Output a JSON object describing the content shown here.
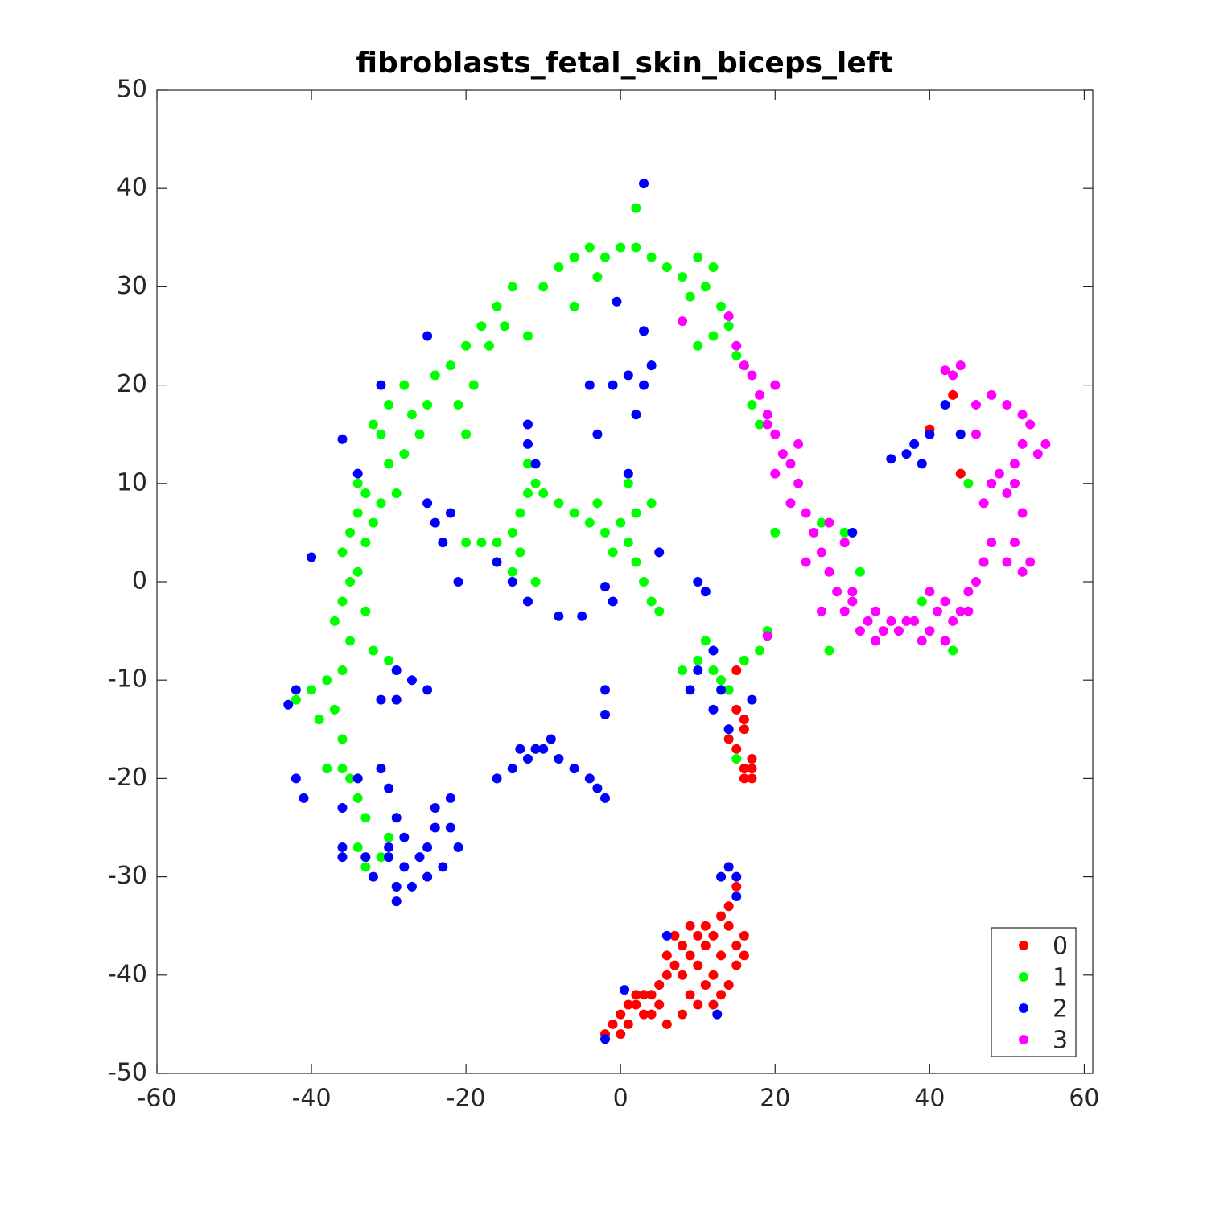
{
  "chart_data": {
    "type": "scatter",
    "title": "fibroblasts_fetal_skin_biceps_left",
    "xlim": [
      -60,
      61.1
    ],
    "ylim": [
      -50,
      50
    ],
    "xticks": [
      -60,
      -40,
      -20,
      0,
      20,
      40,
      60
    ],
    "yticks": [
      -50,
      -40,
      -30,
      -20,
      -10,
      0,
      10,
      20,
      30,
      40,
      50
    ],
    "legend": "lower right",
    "series": [
      {
        "name": "0",
        "color": "#ff0000",
        "x": [
          -2,
          -1,
          0,
          1,
          2,
          3,
          1,
          2,
          4,
          5,
          6,
          4,
          5,
          6,
          7,
          6,
          8,
          8,
          9,
          10,
          11,
          9,
          10,
          11,
          12,
          13,
          12,
          14,
          15,
          16,
          15,
          14,
          13,
          16,
          13,
          14,
          15,
          11,
          10,
          12,
          8,
          7,
          9,
          3,
          0,
          14,
          15,
          16,
          15,
          16,
          17,
          16,
          17,
          14,
          15,
          16,
          17,
          43,
          40,
          44
        ],
        "values": [
          -46,
          -45,
          -44,
          -45,
          -43,
          -44,
          -43,
          -42,
          -44,
          -43,
          -45,
          -42,
          -41,
          -40,
          -39,
          -38,
          -37,
          -40,
          -38,
          -36,
          -37,
          -42,
          -43,
          -41,
          -40,
          -38,
          -36,
          -35,
          -37,
          -36,
          -39,
          -41,
          -42,
          -38,
          -34,
          -33,
          -31,
          -35,
          -39,
          -43,
          -44,
          -36,
          -35,
          -42,
          -46,
          -11,
          -13,
          -15,
          -17,
          -19,
          -18,
          -20,
          -20,
          -16,
          -9,
          -14,
          -19,
          19,
          15.5,
          11
        ]
      },
      {
        "name": "1",
        "color": "#00ff00",
        "x": [
          -42,
          -40,
          -39,
          -38,
          -37,
          -36,
          -38,
          -36,
          -35,
          -34,
          -33,
          -34,
          -33,
          -31,
          -30,
          -36,
          -35,
          -37,
          -36,
          -35,
          -34,
          -36,
          -35,
          -33,
          -34,
          -33,
          -34,
          -32,
          -30,
          -33,
          -32,
          -31,
          -30,
          -31,
          -32,
          -30,
          -28,
          -27,
          -26,
          -25,
          -28,
          -29,
          -24,
          -22,
          -20,
          -18,
          -16,
          -14,
          -15,
          -17,
          -19,
          -21,
          -20,
          -12,
          -10,
          -8,
          -6,
          -4,
          -2,
          0,
          2,
          4,
          6,
          8,
          10,
          12,
          11,
          9,
          13,
          14,
          12,
          10,
          15,
          16,
          17,
          18,
          -6,
          -3,
          2,
          -20,
          -18,
          -16,
          -14,
          -13,
          -12,
          -11,
          -10,
          -8,
          -6,
          -4,
          -2,
          0,
          2,
          4,
          1,
          2,
          3,
          4,
          5,
          -14,
          -13,
          -11,
          -12,
          -3,
          1,
          -1,
          8,
          10,
          11,
          12,
          13,
          14,
          16,
          18,
          19,
          14,
          15,
          27,
          29,
          31,
          39,
          43,
          20,
          26,
          45
        ],
        "values": [
          -12,
          -11,
          -14,
          -10,
          -13,
          -16,
          -19,
          -19,
          -20,
          -22,
          -24,
          -27,
          -29,
          -28,
          -26,
          -9,
          -6,
          -4,
          -2,
          0,
          1,
          3,
          5,
          4,
          7,
          9,
          10,
          -7,
          -8,
          -3,
          6,
          8,
          12,
          15,
          16,
          18,
          20,
          17,
          15,
          18,
          13,
          9,
          21,
          22,
          24,
          26,
          28,
          30,
          26,
          24,
          20,
          18,
          15,
          25,
          30,
          32,
          33,
          34,
          33,
          34,
          34,
          33,
          32,
          31,
          33,
          32,
          30,
          29,
          28,
          26,
          25,
          24,
          23,
          22,
          18,
          16,
          28,
          31,
          38,
          4,
          4,
          4,
          5,
          7,
          9,
          10,
          9,
          8,
          7,
          6,
          5,
          6,
          7,
          8,
          4,
          2,
          0,
          -2,
          -3,
          1,
          3,
          0,
          12,
          8,
          10,
          3,
          -9,
          -8,
          -6,
          -9,
          -10,
          -11,
          -8,
          -7,
          -5,
          -15,
          -18,
          -7,
          5,
          1,
          -2,
          -7,
          5,
          6,
          10
        ]
      },
      {
        "name": "2",
        "color": "#0000ff",
        "x": [
          3,
          -0.5,
          3,
          -25,
          -31,
          -36,
          -34,
          -40,
          -43,
          -42,
          -42,
          -41,
          -36,
          -34,
          -31,
          -30,
          -29,
          -28,
          -30,
          -28,
          -26,
          -25,
          -24,
          -22,
          -21,
          -23,
          -25,
          -27,
          -29,
          -30,
          -32,
          -33,
          -36,
          -36,
          -29,
          -24,
          -29,
          -27,
          -25,
          -29,
          -31,
          -22,
          -16,
          -14,
          -12,
          -11,
          -10,
          -9,
          -8,
          -6,
          -4,
          -3,
          -2,
          -13,
          -2,
          -2,
          -5,
          -8,
          -12,
          -14,
          -16,
          -21,
          -11,
          -12,
          -12,
          -24,
          -23,
          -22,
          -25,
          -1,
          1,
          3,
          2,
          -3,
          -4,
          4,
          1,
          5,
          10,
          11,
          -2,
          -1,
          10,
          12,
          12,
          14,
          17,
          13,
          9,
          14,
          15,
          13,
          15,
          6,
          12.5,
          0.5,
          -2,
          30,
          35,
          37,
          38,
          39,
          40,
          42,
          44,
          47
        ],
        "values": [
          40.5,
          28.5,
          25.5,
          25,
          20,
          14.5,
          11,
          2.5,
          -12.5,
          -11,
          -20,
          -22,
          -23,
          -20,
          -19,
          -21,
          -24,
          -26,
          -27,
          -29,
          -28,
          -27,
          -25,
          -25,
          -27,
          -29,
          -30,
          -31,
          -31,
          -28,
          -30,
          -28,
          -28,
          -27,
          -32.5,
          -23,
          -9,
          -10,
          -11,
          -12,
          -12,
          -22,
          -20,
          -19,
          -18,
          -17,
          -17,
          -16,
          -18,
          -19,
          -20,
          -21,
          -22,
          -17,
          -11,
          -13.5,
          -3.5,
          -3.5,
          -2,
          0,
          2,
          0,
          12,
          14,
          16,
          6,
          4,
          7,
          8,
          20,
          21,
          20,
          17,
          15,
          20,
          22,
          11,
          3,
          0,
          -1,
          -0.5,
          -2,
          -9,
          -7,
          -13,
          -15,
          -12,
          -11,
          -11,
          -29,
          -30,
          -30,
          -32,
          -36,
          -44,
          -41.5,
          -46.5,
          5,
          12.5,
          13,
          14,
          12,
          15,
          18,
          15,
          2
        ]
      },
      {
        "name": "3",
        "color": "#ff00ff",
        "x": [
          8,
          14,
          15,
          16,
          17,
          18,
          19,
          20,
          21,
          20,
          22,
          23,
          22,
          24,
          25,
          26,
          24,
          27,
          28,
          26,
          29,
          30,
          32,
          31,
          33,
          34,
          35,
          36,
          37,
          38,
          39,
          40,
          41,
          42,
          43,
          44,
          45,
          46,
          45,
          42,
          40,
          33,
          29,
          27,
          23,
          20,
          19,
          47,
          48,
          50,
          52,
          51,
          52,
          50,
          48,
          47,
          49,
          51,
          52,
          53,
          54,
          55,
          52,
          50,
          48,
          46,
          46,
          44,
          43,
          42,
          51,
          53,
          19,
          30
        ],
        "values": [
          26.5,
          27,
          24,
          22,
          21,
          19,
          17,
          15,
          13,
          11,
          12,
          10,
          8,
          7,
          5,
          3,
          2,
          1,
          -1,
          -3,
          -3,
          -2,
          -4,
          -5,
          -6,
          -5,
          -4,
          -5,
          -4,
          -4,
          -6,
          -5,
          -3,
          -6,
          -4,
          -3,
          -1,
          0,
          -3,
          -2,
          -1,
          -3,
          4,
          6,
          14,
          20,
          16,
          2,
          4,
          2,
          1,
          4,
          7,
          9,
          10,
          8,
          11,
          12,
          14,
          16,
          13,
          14,
          17,
          18,
          19,
          18,
          15,
          22,
          21,
          21.5,
          10,
          2,
          -5.5,
          -1
        ]
      }
    ]
  }
}
